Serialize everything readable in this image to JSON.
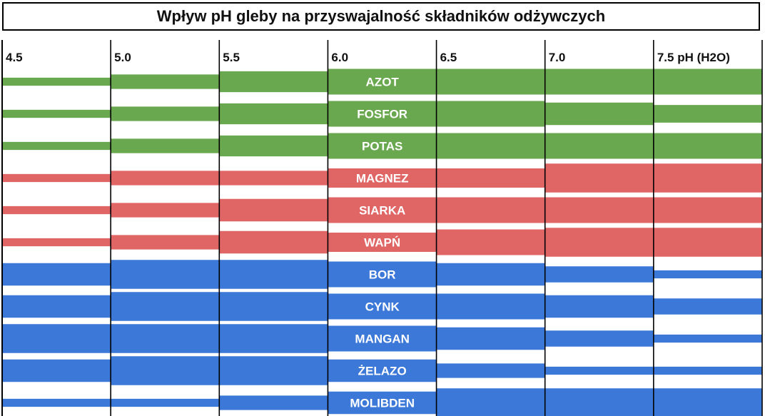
{
  "chart_data": {
    "type": "bar",
    "title": "Wpływ pH gleby na przyswajalność składników odżywczych",
    "x_ticks": [
      "4.5",
      "5.0",
      "5.5",
      "6.0",
      "6.5",
      "7.0",
      "7.5 pH (H2O)"
    ],
    "x_values": [
      4.5,
      5.0,
      5.5,
      6.0,
      6.5,
      7.0,
      7.5
    ],
    "xlim": [
      4.5,
      8.0
    ],
    "series_units": "relative availability (0-1)",
    "colors": {
      "makro": "#6aa84f",
      "wtorne": "#e06666",
      "mikro": "#3c78d8"
    },
    "nutrients": [
      {
        "name": "AZOT",
        "group": "makro",
        "values": [
          0.25,
          0.45,
          0.65,
          0.8,
          0.8,
          0.8,
          0.8
        ]
      },
      {
        "name": "FOSFOR",
        "group": "makro",
        "values": [
          0.25,
          0.45,
          0.65,
          0.8,
          0.8,
          0.7,
          0.55
        ]
      },
      {
        "name": "POTAS",
        "group": "makro",
        "values": [
          0.25,
          0.45,
          0.65,
          0.8,
          0.8,
          0.8,
          0.8
        ]
      },
      {
        "name": "MAGNEZ",
        "group": "wtorne",
        "values": [
          0.25,
          0.45,
          0.45,
          0.6,
          0.6,
          0.9,
          0.9
        ]
      },
      {
        "name": "SIARKA",
        "group": "wtorne",
        "values": [
          0.25,
          0.45,
          0.7,
          0.8,
          0.8,
          0.8,
          0.8
        ]
      },
      {
        "name": "WAPŃ",
        "group": "wtorne",
        "values": [
          0.25,
          0.45,
          0.7,
          0.6,
          0.8,
          0.9,
          0.9
        ]
      },
      {
        "name": "BOR",
        "group": "mikro",
        "values": [
          0.7,
          0.9,
          0.9,
          0.8,
          0.7,
          0.5,
          0.25
        ]
      },
      {
        "name": "CYNK",
        "group": "mikro",
        "values": [
          0.7,
          0.9,
          0.9,
          0.8,
          0.8,
          0.7,
          0.5
        ]
      },
      {
        "name": "MANGAN",
        "group": "mikro",
        "values": [
          0.9,
          0.9,
          0.9,
          0.8,
          0.7,
          0.5,
          0.25
        ]
      },
      {
        "name": "ŻELAZO",
        "group": "mikro",
        "values": [
          0.7,
          0.9,
          0.9,
          0.7,
          0.45,
          0.25,
          0.25
        ]
      },
      {
        "name": "MOLIBDEN",
        "group": "mikro",
        "values": [
          0.25,
          0.25,
          0.45,
          0.7,
          0.9,
          0.9,
          0.9
        ]
      }
    ]
  }
}
